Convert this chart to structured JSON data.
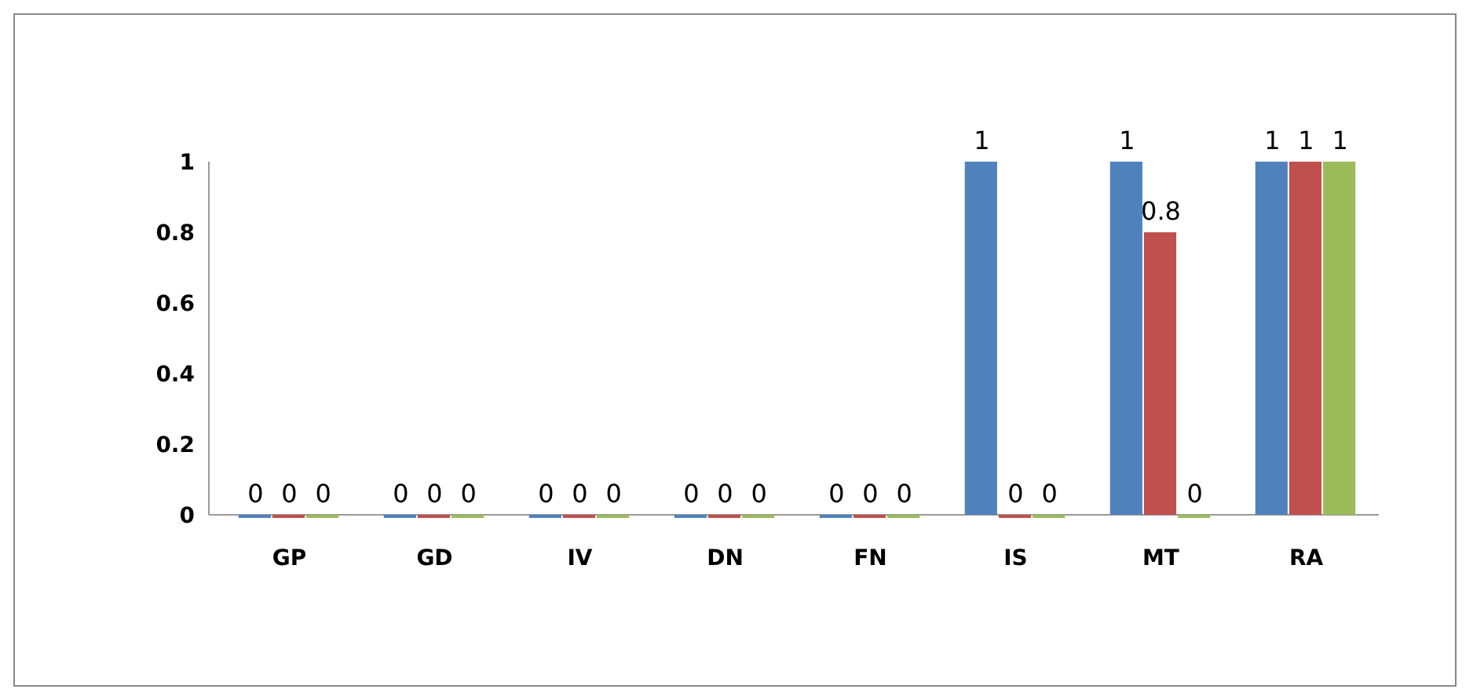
{
  "chart_data": {
    "type": "bar",
    "categories": [
      "GP",
      "GD",
      "IV",
      "DN",
      "FN",
      "IS",
      "MT",
      "RA"
    ],
    "series": [
      {
        "color": "#4f81bd",
        "values": [
          0,
          0,
          0,
          0,
          0,
          1,
          1,
          1
        ]
      },
      {
        "color": "#c0504d",
        "values": [
          0,
          0,
          0,
          0,
          0,
          0,
          0.8,
          1
        ]
      },
      {
        "color": "#9bbb59",
        "values": [
          0,
          0,
          0,
          0,
          0,
          0,
          0,
          1
        ]
      }
    ],
    "ylim": [
      0,
      1
    ],
    "yticks": [
      0,
      0.2,
      0.4,
      0.6,
      0.8,
      1
    ],
    "grid": false,
    "data_labels": true,
    "legend": false
  }
}
